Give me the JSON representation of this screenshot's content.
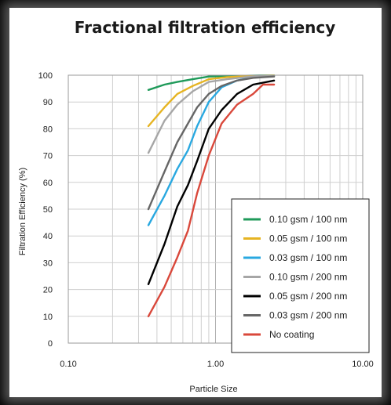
{
  "chart_data": {
    "type": "line",
    "title": "Fractional filtration efficiency",
    "xlabel": "Particle Size",
    "ylabel": "Filtration Efficiency (%)",
    "x_scale": "log",
    "xlim": [
      0.1,
      10
    ],
    "ylim": [
      0,
      100
    ],
    "x_ticks": [
      "0.10",
      "1.00",
      "10.00"
    ],
    "y_ticks": [
      "0",
      "10",
      "20",
      "30",
      "40",
      "50",
      "60",
      "70",
      "80",
      "90",
      "100"
    ],
    "grid": true,
    "legend_position": "bottom-right",
    "series": [
      {
        "name": "0.10 gsm / 100 nm",
        "color": "#1f9a5a",
        "x": [
          0.35,
          0.45,
          0.55,
          0.7,
          0.9,
          1.2,
          1.6,
          2.0,
          2.5
        ],
        "y": [
          94.5,
          96.5,
          97.5,
          98.5,
          99.5,
          99.7,
          99.8,
          99.9,
          99.9
        ]
      },
      {
        "name": "0.05 gsm / 100 nm",
        "color": "#e6b422",
        "x": [
          0.35,
          0.45,
          0.55,
          0.7,
          0.9,
          1.2,
          1.6,
          2.0,
          2.5
        ],
        "y": [
          81,
          88,
          93,
          96,
          98.5,
          99.3,
          99.6,
          99.8,
          99.9
        ]
      },
      {
        "name": "0.03 gsm / 100 nm",
        "color": "#29a8e0",
        "x": [
          0.35,
          0.45,
          0.55,
          0.65,
          0.75,
          0.9,
          1.1,
          1.4,
          1.8,
          2.5
        ],
        "y": [
          44,
          55,
          65,
          72,
          81,
          90,
          95.5,
          98,
          99.3,
          99.7
        ]
      },
      {
        "name": "0.10 gsm / 200 nm",
        "color": "#a6a6a6",
        "x": [
          0.35,
          0.45,
          0.55,
          0.7,
          0.9,
          1.2,
          1.6,
          2.0,
          2.5
        ],
        "y": [
          71,
          83,
          89,
          94,
          97.5,
          98.5,
          99.3,
          99.6,
          99.8
        ]
      },
      {
        "name": "0.05 gsm / 200 nm",
        "color": "#000000",
        "x": [
          0.35,
          0.45,
          0.55,
          0.65,
          0.75,
          0.9,
          1.1,
          1.4,
          1.8,
          2.5
        ],
        "y": [
          22,
          37,
          51,
          59,
          68,
          80,
          87,
          93,
          96.5,
          98
        ]
      },
      {
        "name": "0.03 gsm / 200 nm",
        "color": "#666666",
        "x": [
          0.35,
          0.45,
          0.55,
          0.65,
          0.75,
          0.9,
          1.1,
          1.4,
          1.8,
          2.5
        ],
        "y": [
          50,
          64,
          75,
          82,
          88,
          93,
          96,
          98,
          99,
          99.5
        ]
      },
      {
        "name": "No coating",
        "color": "#d9483b",
        "x": [
          0.35,
          0.45,
          0.55,
          0.65,
          0.75,
          0.9,
          1.1,
          1.4,
          1.8,
          2.1,
          2.5
        ],
        "y": [
          10,
          21,
          32,
          42,
          56,
          70,
          82,
          89,
          93,
          96.5,
          96.5
        ]
      }
    ]
  }
}
